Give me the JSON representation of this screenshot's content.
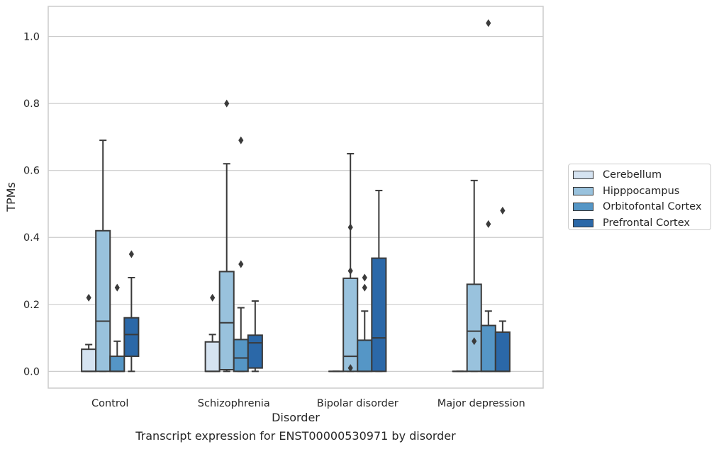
{
  "chart_data": {
    "type": "box",
    "xlabel": "Disorder",
    "ylabel": "TPMs",
    "ylim": [
      -0.05,
      1.09
    ],
    "yticks": [
      0.0,
      0.2,
      0.4,
      0.6,
      0.8,
      1.0
    ],
    "ytick_labels": [
      "0.0",
      "0.2",
      "0.4",
      "0.6",
      "0.8",
      "1.0"
    ],
    "categories": [
      "Control",
      "Schizophrenia",
      "Bipolar disorder",
      "Major depression"
    ],
    "grid": "horizontal",
    "legend_position": "right",
    "series": [
      {
        "name": "Cerebellum",
        "color": "#d5e3f1",
        "boxes": [
          {
            "q1": 0.0,
            "median": 0.0,
            "q3": 0.066,
            "whisker_low": 0.0,
            "whisker_high": 0.08,
            "outliers": [
              0.22
            ]
          },
          {
            "q1": 0.0,
            "median": 0.0,
            "q3": 0.088,
            "whisker_low": 0.0,
            "whisker_high": 0.11,
            "outliers": [
              0.22
            ]
          },
          {
            "q1": 0.0,
            "median": 0.0,
            "q3": 0.0,
            "whisker_low": 0.0,
            "whisker_high": 0.0,
            "outliers": []
          },
          {
            "q1": 0.0,
            "median": 0.0,
            "q3": 0.0,
            "whisker_low": 0.0,
            "whisker_high": 0.0,
            "outliers": []
          }
        ]
      },
      {
        "name": "Hipppocampus",
        "color": "#99c2dd",
        "boxes": [
          {
            "q1": 0.0,
            "median": 0.15,
            "q3": 0.42,
            "whisker_low": 0.0,
            "whisker_high": 0.69,
            "outliers": []
          },
          {
            "q1": 0.005,
            "median": 0.145,
            "q3": 0.298,
            "whisker_low": 0.0,
            "whisker_high": 0.62,
            "outliers": [
              0.8
            ]
          },
          {
            "q1": 0.0,
            "median": 0.045,
            "q3": 0.278,
            "whisker_low": 0.0,
            "whisker_high": 0.65,
            "outliers": [
              0.01,
              0.3,
              0.43
            ]
          },
          {
            "q1": 0.0,
            "median": 0.12,
            "q3": 0.26,
            "whisker_low": 0.0,
            "whisker_high": 0.57,
            "outliers": [
              0.09
            ]
          }
        ]
      },
      {
        "name": "Orbitofontal Cortex",
        "color": "#5596c6",
        "boxes": [
          {
            "q1": 0.0,
            "median": 0.0,
            "q3": 0.045,
            "whisker_low": 0.0,
            "whisker_high": 0.09,
            "outliers": [
              0.25
            ]
          },
          {
            "q1": 0.0,
            "median": 0.04,
            "q3": 0.095,
            "whisker_low": 0.0,
            "whisker_high": 0.19,
            "outliers": [
              0.32,
              0.69
            ]
          },
          {
            "q1": 0.0,
            "median": 0.0,
            "q3": 0.093,
            "whisker_low": 0.0,
            "whisker_high": 0.18,
            "outliers": [
              0.25,
              0.28
            ]
          },
          {
            "q1": 0.0,
            "median": 0.0,
            "q3": 0.137,
            "whisker_low": 0.0,
            "whisker_high": 0.18,
            "outliers": [
              0.44,
              1.04
            ]
          }
        ]
      },
      {
        "name": "Prefrontal Cortex",
        "color": "#2b68a8",
        "boxes": [
          {
            "q1": 0.045,
            "median": 0.11,
            "q3": 0.16,
            "whisker_low": 0.0,
            "whisker_high": 0.28,
            "outliers": [
              0.35
            ]
          },
          {
            "q1": 0.01,
            "median": 0.085,
            "q3": 0.108,
            "whisker_low": 0.0,
            "whisker_high": 0.21,
            "outliers": []
          },
          {
            "q1": 0.0,
            "median": 0.1,
            "q3": 0.338,
            "whisker_low": 0.0,
            "whisker_high": 0.54,
            "outliers": []
          },
          {
            "q1": 0.0,
            "median": 0.0,
            "q3": 0.117,
            "whisker_low": 0.0,
            "whisker_high": 0.15,
            "outliers": [
              0.48
            ]
          }
        ]
      }
    ]
  },
  "caption": "Transcript expression for ENST00000530971 by disorder"
}
